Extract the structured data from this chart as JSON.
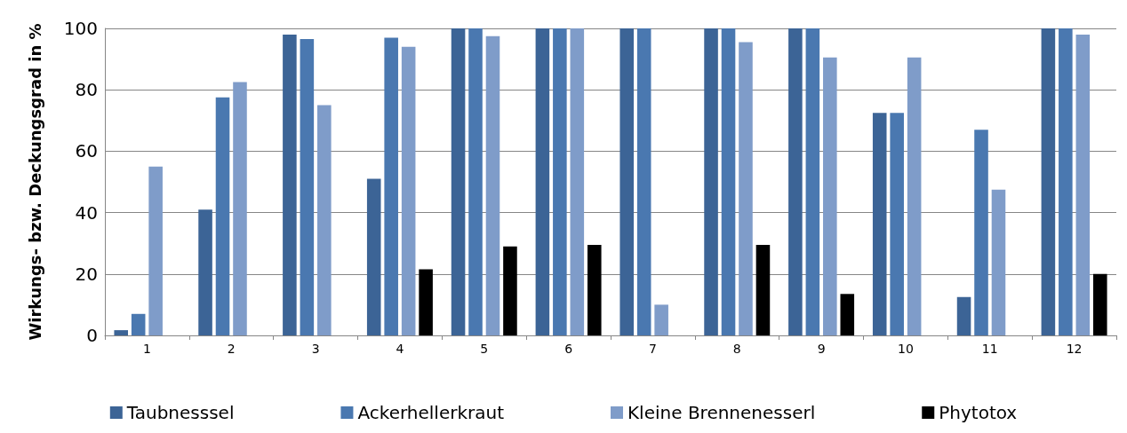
{
  "chart_data": {
    "type": "bar",
    "ylabel": "Wirkungs- bzw. Deckungsgrad in %",
    "categories": [
      "1",
      "2",
      "3",
      "4",
      "5",
      "6",
      "7",
      "8",
      "9",
      "10",
      "11",
      "12"
    ],
    "series": [
      {
        "name": "Taubnesssel",
        "color": "#3c6496",
        "values": [
          1.7,
          41,
          98,
          51,
          100,
          100,
          100,
          100,
          100,
          72.5,
          12.5,
          100
        ]
      },
      {
        "name": "Ackerhellerkraut",
        "color": "#4a78b0",
        "values": [
          7,
          77.5,
          96.5,
          97,
          100,
          100,
          100,
          100,
          100,
          72.5,
          67,
          100
        ]
      },
      {
        "name": "Kleine Brennenesserl",
        "color": "#7f9cc9",
        "values": [
          55,
          82.5,
          75,
          94,
          97.5,
          100,
          10,
          95.5,
          90.5,
          90.5,
          47.5,
          98
        ]
      },
      {
        "name": "Phytotox",
        "color": "#000000",
        "values": [
          null,
          null,
          null,
          21.5,
          29,
          29.5,
          null,
          29.5,
          13.5,
          null,
          null,
          20
        ]
      }
    ],
    "ylim": [
      0,
      100
    ],
    "yticks": [
      0,
      20,
      40,
      60,
      80,
      100
    ],
    "grid": "y",
    "legend": "bottom"
  }
}
